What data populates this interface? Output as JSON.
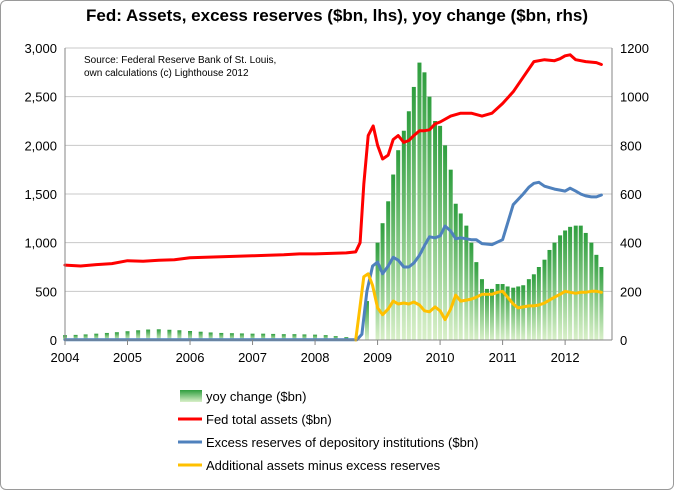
{
  "chart_data": {
    "type": "bar+line",
    "title": "Fed: Assets, excess reserves ($bn, lhs), yoy change ($bn, rhs)",
    "source": [
      "Source: Federal Reserve Bank of St. Louis,",
      "own calculations (c) Lighthouse 2012"
    ],
    "x_ticks": [
      "2004",
      "2005",
      "2006",
      "2007",
      "2008",
      "2009",
      "2010",
      "2011",
      "2012"
    ],
    "ylim_left": [
      0,
      3000
    ],
    "ylim_right": [
      0,
      1200
    ],
    "y_ticks_left": [
      "0",
      "500",
      "1,000",
      "1,500",
      "2,000",
      "2,500",
      "3,000"
    ],
    "y_ticks_right": [
      "0",
      "200",
      "400",
      "600",
      "800",
      "1000",
      "1200"
    ],
    "legend_position": "bottom",
    "grid": true,
    "series": [
      {
        "name": "yoy change ($bn)",
        "axis": "right",
        "kind": "bar",
        "color": "#3cb043",
        "points": [
          [
            2004.0,
            20
          ],
          [
            2004.17,
            21
          ],
          [
            2004.33,
            23
          ],
          [
            2004.5,
            26
          ],
          [
            2004.67,
            29
          ],
          [
            2004.83,
            32
          ],
          [
            2005.0,
            36
          ],
          [
            2005.17,
            40
          ],
          [
            2005.33,
            43
          ],
          [
            2005.5,
            44
          ],
          [
            2005.67,
            42
          ],
          [
            2005.83,
            40
          ],
          [
            2006.0,
            37
          ],
          [
            2006.17,
            34
          ],
          [
            2006.33,
            31
          ],
          [
            2006.5,
            29
          ],
          [
            2006.67,
            28
          ],
          [
            2006.83,
            27
          ],
          [
            2007.0,
            26
          ],
          [
            2007.17,
            26
          ],
          [
            2007.33,
            25
          ],
          [
            2007.5,
            24
          ],
          [
            2007.67,
            24
          ],
          [
            2007.83,
            23
          ],
          [
            2008.0,
            22
          ],
          [
            2008.17,
            20
          ],
          [
            2008.33,
            16
          ],
          [
            2008.5,
            12
          ],
          [
            2008.67,
            10
          ],
          [
            2008.83,
            160
          ],
          [
            2009.0,
            400
          ],
          [
            2009.08,
            480
          ],
          [
            2009.17,
            570
          ],
          [
            2009.25,
            680
          ],
          [
            2009.33,
            780
          ],
          [
            2009.42,
            860
          ],
          [
            2009.5,
            940
          ],
          [
            2009.58,
            1040
          ],
          [
            2009.67,
            1140
          ],
          [
            2009.75,
            1100
          ],
          [
            2009.83,
            1000
          ],
          [
            2009.92,
            900
          ],
          [
            2010.0,
            880
          ],
          [
            2010.08,
            800
          ],
          [
            2010.17,
            700
          ],
          [
            2010.25,
            560
          ],
          [
            2010.33,
            520
          ],
          [
            2010.42,
            470
          ],
          [
            2010.5,
            400
          ],
          [
            2010.58,
            320
          ],
          [
            2010.67,
            250
          ],
          [
            2010.75,
            210
          ],
          [
            2010.83,
            210
          ],
          [
            2010.92,
            230
          ],
          [
            2011.0,
            230
          ],
          [
            2011.08,
            220
          ],
          [
            2011.17,
            215
          ],
          [
            2011.25,
            220
          ],
          [
            2011.33,
            225
          ],
          [
            2011.42,
            250
          ],
          [
            2011.5,
            270
          ],
          [
            2011.58,
            300
          ],
          [
            2011.67,
            330
          ],
          [
            2011.75,
            370
          ],
          [
            2011.83,
            400
          ],
          [
            2011.92,
            430
          ],
          [
            2012.0,
            450
          ],
          [
            2012.08,
            465
          ],
          [
            2012.17,
            470
          ],
          [
            2012.25,
            470
          ],
          [
            2012.33,
            440
          ],
          [
            2012.42,
            400
          ],
          [
            2012.5,
            350
          ],
          [
            2012.58,
            300
          ]
        ]
      },
      {
        "name": "Fed total assets ($bn)",
        "axis": "left",
        "kind": "line",
        "color": "#ff0000",
        "points": [
          [
            2004.0,
            770
          ],
          [
            2004.25,
            760
          ],
          [
            2004.5,
            775
          ],
          [
            2004.75,
            785
          ],
          [
            2005.0,
            815
          ],
          [
            2005.25,
            810
          ],
          [
            2005.5,
            820
          ],
          [
            2005.75,
            825
          ],
          [
            2006.0,
            845
          ],
          [
            2006.25,
            850
          ],
          [
            2006.5,
            855
          ],
          [
            2006.75,
            860
          ],
          [
            2007.0,
            865
          ],
          [
            2007.25,
            870
          ],
          [
            2007.5,
            875
          ],
          [
            2007.75,
            885
          ],
          [
            2008.0,
            885
          ],
          [
            2008.25,
            890
          ],
          [
            2008.5,
            895
          ],
          [
            2008.65,
            905
          ],
          [
            2008.72,
            1000
          ],
          [
            2008.78,
            1600
          ],
          [
            2008.85,
            2100
          ],
          [
            2008.93,
            2200
          ],
          [
            2009.0,
            2000
          ],
          [
            2009.08,
            1860
          ],
          [
            2009.17,
            1900
          ],
          [
            2009.25,
            2060
          ],
          [
            2009.33,
            2100
          ],
          [
            2009.42,
            2030
          ],
          [
            2009.5,
            2050
          ],
          [
            2009.58,
            2100
          ],
          [
            2009.67,
            2150
          ],
          [
            2009.75,
            2150
          ],
          [
            2009.83,
            2160
          ],
          [
            2009.92,
            2220
          ],
          [
            2010.0,
            2240
          ],
          [
            2010.17,
            2300
          ],
          [
            2010.33,
            2330
          ],
          [
            2010.5,
            2330
          ],
          [
            2010.67,
            2300
          ],
          [
            2010.83,
            2330
          ],
          [
            2011.0,
            2430
          ],
          [
            2011.17,
            2550
          ],
          [
            2011.33,
            2700
          ],
          [
            2011.5,
            2860
          ],
          [
            2011.67,
            2880
          ],
          [
            2011.83,
            2870
          ],
          [
            2011.92,
            2890
          ],
          [
            2012.0,
            2920
          ],
          [
            2012.08,
            2930
          ],
          [
            2012.17,
            2880
          ],
          [
            2012.33,
            2860
          ],
          [
            2012.5,
            2850
          ],
          [
            2012.58,
            2830
          ]
        ]
      },
      {
        "name": "Excess reserves of depository institutions ($bn)",
        "axis": "left",
        "kind": "line",
        "color": "#4f81bd",
        "points": [
          [
            2004.0,
            2
          ],
          [
            2004.5,
            2
          ],
          [
            2005.0,
            2
          ],
          [
            2005.5,
            2
          ],
          [
            2006.0,
            2
          ],
          [
            2006.5,
            2
          ],
          [
            2007.0,
            2
          ],
          [
            2007.5,
            2
          ],
          [
            2008.0,
            2
          ],
          [
            2008.5,
            2
          ],
          [
            2008.67,
            2
          ],
          [
            2008.75,
            60
          ],
          [
            2008.83,
            500
          ],
          [
            2008.92,
            760
          ],
          [
            2009.0,
            800
          ],
          [
            2009.08,
            680
          ],
          [
            2009.17,
            760
          ],
          [
            2009.25,
            850
          ],
          [
            2009.33,
            820
          ],
          [
            2009.42,
            750
          ],
          [
            2009.5,
            750
          ],
          [
            2009.58,
            790
          ],
          [
            2009.67,
            870
          ],
          [
            2009.75,
            970
          ],
          [
            2009.83,
            1060
          ],
          [
            2009.92,
            1050
          ],
          [
            2010.0,
            1070
          ],
          [
            2010.08,
            1170
          ],
          [
            2010.17,
            1120
          ],
          [
            2010.25,
            1040
          ],
          [
            2010.33,
            1050
          ],
          [
            2010.42,
            1040
          ],
          [
            2010.5,
            1030
          ],
          [
            2010.58,
            1030
          ],
          [
            2010.67,
            990
          ],
          [
            2010.83,
            980
          ],
          [
            2011.0,
            1030
          ],
          [
            2011.08,
            1200
          ],
          [
            2011.17,
            1390
          ],
          [
            2011.33,
            1500
          ],
          [
            2011.42,
            1570
          ],
          [
            2011.5,
            1610
          ],
          [
            2011.58,
            1620
          ],
          [
            2011.67,
            1580
          ],
          [
            2011.83,
            1550
          ],
          [
            2011.92,
            1540
          ],
          [
            2012.0,
            1530
          ],
          [
            2012.08,
            1560
          ],
          [
            2012.17,
            1530
          ],
          [
            2012.25,
            1500
          ],
          [
            2012.33,
            1480
          ],
          [
            2012.42,
            1470
          ],
          [
            2012.5,
            1470
          ],
          [
            2012.58,
            1490
          ]
        ]
      },
      {
        "name": "Additional assets minus excess reserves",
        "axis": "left",
        "kind": "line",
        "color": "#ffc000",
        "points": [
          [
            2008.65,
            0
          ],
          [
            2008.72,
            350
          ],
          [
            2008.78,
            650
          ],
          [
            2008.85,
            680
          ],
          [
            2008.92,
            560
          ],
          [
            2009.0,
            330
          ],
          [
            2009.08,
            260
          ],
          [
            2009.17,
            320
          ],
          [
            2009.25,
            400
          ],
          [
            2009.33,
            370
          ],
          [
            2009.42,
            380
          ],
          [
            2009.5,
            370
          ],
          [
            2009.58,
            390
          ],
          [
            2009.67,
            360
          ],
          [
            2009.75,
            300
          ],
          [
            2009.83,
            290
          ],
          [
            2009.92,
            340
          ],
          [
            2010.0,
            300
          ],
          [
            2010.08,
            210
          ],
          [
            2010.17,
            320
          ],
          [
            2010.25,
            460
          ],
          [
            2010.33,
            400
          ],
          [
            2010.42,
            410
          ],
          [
            2010.5,
            420
          ],
          [
            2010.58,
            440
          ],
          [
            2010.67,
            470
          ],
          [
            2010.75,
            470
          ],
          [
            2010.83,
            470
          ],
          [
            2010.92,
            490
          ],
          [
            2011.0,
            500
          ],
          [
            2011.08,
            440
          ],
          [
            2011.17,
            370
          ],
          [
            2011.25,
            330
          ],
          [
            2011.33,
            340
          ],
          [
            2011.42,
            350
          ],
          [
            2011.5,
            350
          ],
          [
            2011.58,
            360
          ],
          [
            2011.67,
            380
          ],
          [
            2011.75,
            410
          ],
          [
            2011.83,
            440
          ],
          [
            2011.92,
            470
          ],
          [
            2012.0,
            500
          ],
          [
            2012.08,
            490
          ],
          [
            2012.17,
            480
          ],
          [
            2012.25,
            490
          ],
          [
            2012.33,
            490
          ],
          [
            2012.42,
            500
          ],
          [
            2012.5,
            500
          ],
          [
            2012.58,
            490
          ]
        ]
      }
    ]
  }
}
